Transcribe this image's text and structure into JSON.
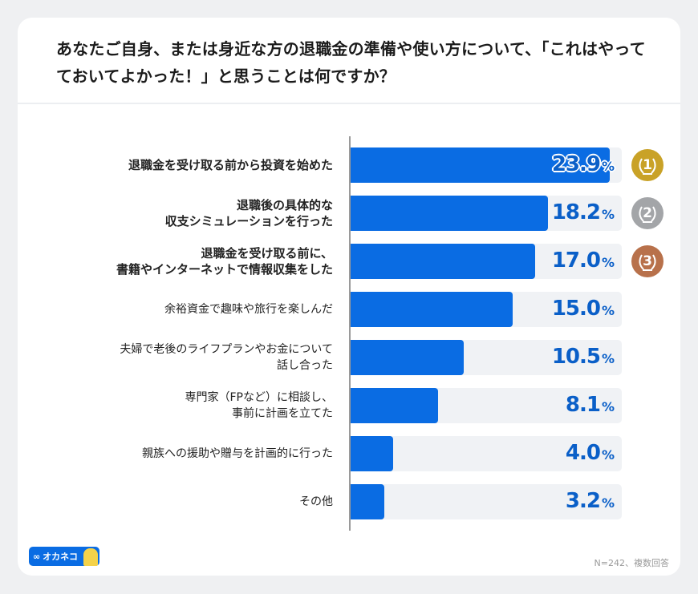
{
  "title": "あなたご自身、または身近な方の退職金の準備や使い方について、「これはやってておいてよかった！」と思うことは何ですか？",
  "note": "N=242、複数回答",
  "logo": "オカネコ",
  "medal_colors": [
    "#c9a227",
    "#a3a5a8",
    "#b8714b"
  ],
  "bar_color": "#0a6ce3",
  "chart_data": {
    "type": "bar",
    "orientation": "horizontal",
    "categories": [
      "退職金を受け取る前から投資を始めた",
      "退職後の具体的な\n収支シミュレーションを行った",
      "退職金を受け取る前に、\n書籍やインターネットで情報収集をした",
      "余裕資金で趣味や旅行を楽しんだ",
      "夫婦で老後のライフプランやお金について\n話し合った",
      "専門家（FPなど）に相談し、\n事前に計画を立てた",
      "親族への援助や贈与を計画的に行った",
      "その他"
    ],
    "values": [
      23.9,
      18.2,
      17.0,
      15.0,
      10.5,
      8.1,
      4.0,
      3.2
    ],
    "labels": [
      "23.9",
      "18.2",
      "17.0",
      "15.0",
      "10.5",
      "8.1",
      "4.0",
      "3.2"
    ],
    "unit": "%",
    "ranks": [
      "1",
      "2",
      "3"
    ],
    "xlim": [
      0,
      25
    ]
  }
}
